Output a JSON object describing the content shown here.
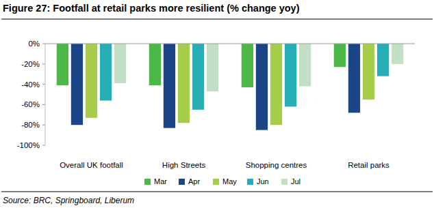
{
  "chart_data": {
    "type": "bar",
    "title": "Figure 27: Footfall at retail parks more resilient (% change yoy)",
    "source": "Source: BRC, Springboard, Liberum",
    "categories": [
      "Overall UK footfall",
      "High Streets",
      "Shopping centres",
      "Retail parks"
    ],
    "series": [
      {
        "name": "Mar",
        "color": "#4cb848",
        "values": [
          -41,
          -41,
          -43,
          -23
        ]
      },
      {
        "name": "Apr",
        "color": "#1c4587",
        "values": [
          -80,
          -83,
          -85,
          -68
        ]
      },
      {
        "name": "May",
        "color": "#a5cd4a",
        "values": [
          -73,
          -78,
          -80,
          -55
        ]
      },
      {
        "name": "Jun",
        "color": "#25aeb5",
        "values": [
          -56,
          -65,
          -62,
          -32
        ]
      },
      {
        "name": "Jul",
        "color": "#c3e0c6",
        "values": [
          -39,
          -47,
          -42,
          -20
        ]
      }
    ],
    "ylim": [
      -100,
      0
    ],
    "yticks": [
      {
        "value": 0,
        "label": "0%"
      },
      {
        "value": -20,
        "label": "-20%"
      },
      {
        "value": -40,
        "label": "-40%"
      },
      {
        "value": -60,
        "label": "-60%"
      },
      {
        "value": -80,
        "label": "-80%"
      },
      {
        "value": -100,
        "label": "-100%"
      }
    ],
    "grid": false,
    "legend": "bottom"
  }
}
